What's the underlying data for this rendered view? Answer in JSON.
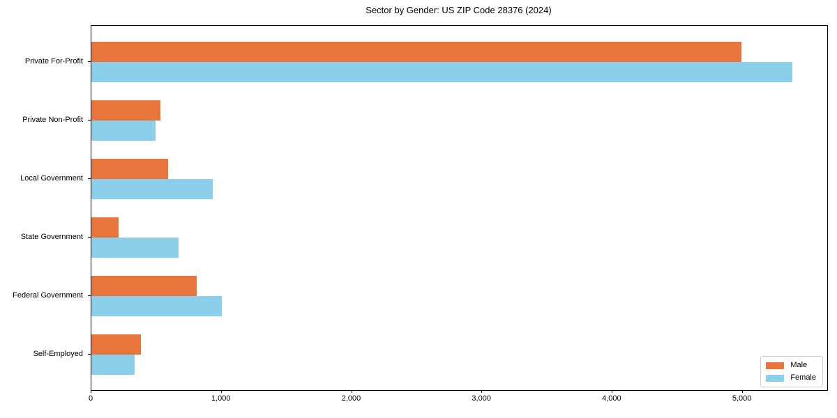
{
  "chart_data": {
    "type": "bar",
    "orientation": "horizontal",
    "title": "Sector by Gender: US ZIP Code 28376 (2024)",
    "categories": [
      "Private For-Profit",
      "Private Non-Profit",
      "Local Government",
      "State Government",
      "Federal Government",
      "Self-Employed"
    ],
    "series": [
      {
        "name": "Male",
        "color": "#E8763C",
        "values": [
          4990,
          530,
          590,
          210,
          810,
          380
        ]
      },
      {
        "name": "Female",
        "color": "#8BCFEA",
        "values": [
          5380,
          490,
          930,
          670,
          1000,
          330
        ]
      }
    ],
    "xlabel": "",
    "ylabel": "",
    "xlim": [
      0,
      5650
    ],
    "xticks": [
      0,
      1000,
      2000,
      3000,
      4000,
      5000
    ],
    "xtick_labels": [
      "0",
      "1,000",
      "2,000",
      "3,000",
      "4,000",
      "5,000"
    ],
    "grid": false,
    "plot_background": "#ffffff",
    "spine_color": "#000000",
    "legend": {
      "position": "lower right",
      "entries": [
        "Male",
        "Female"
      ]
    }
  }
}
